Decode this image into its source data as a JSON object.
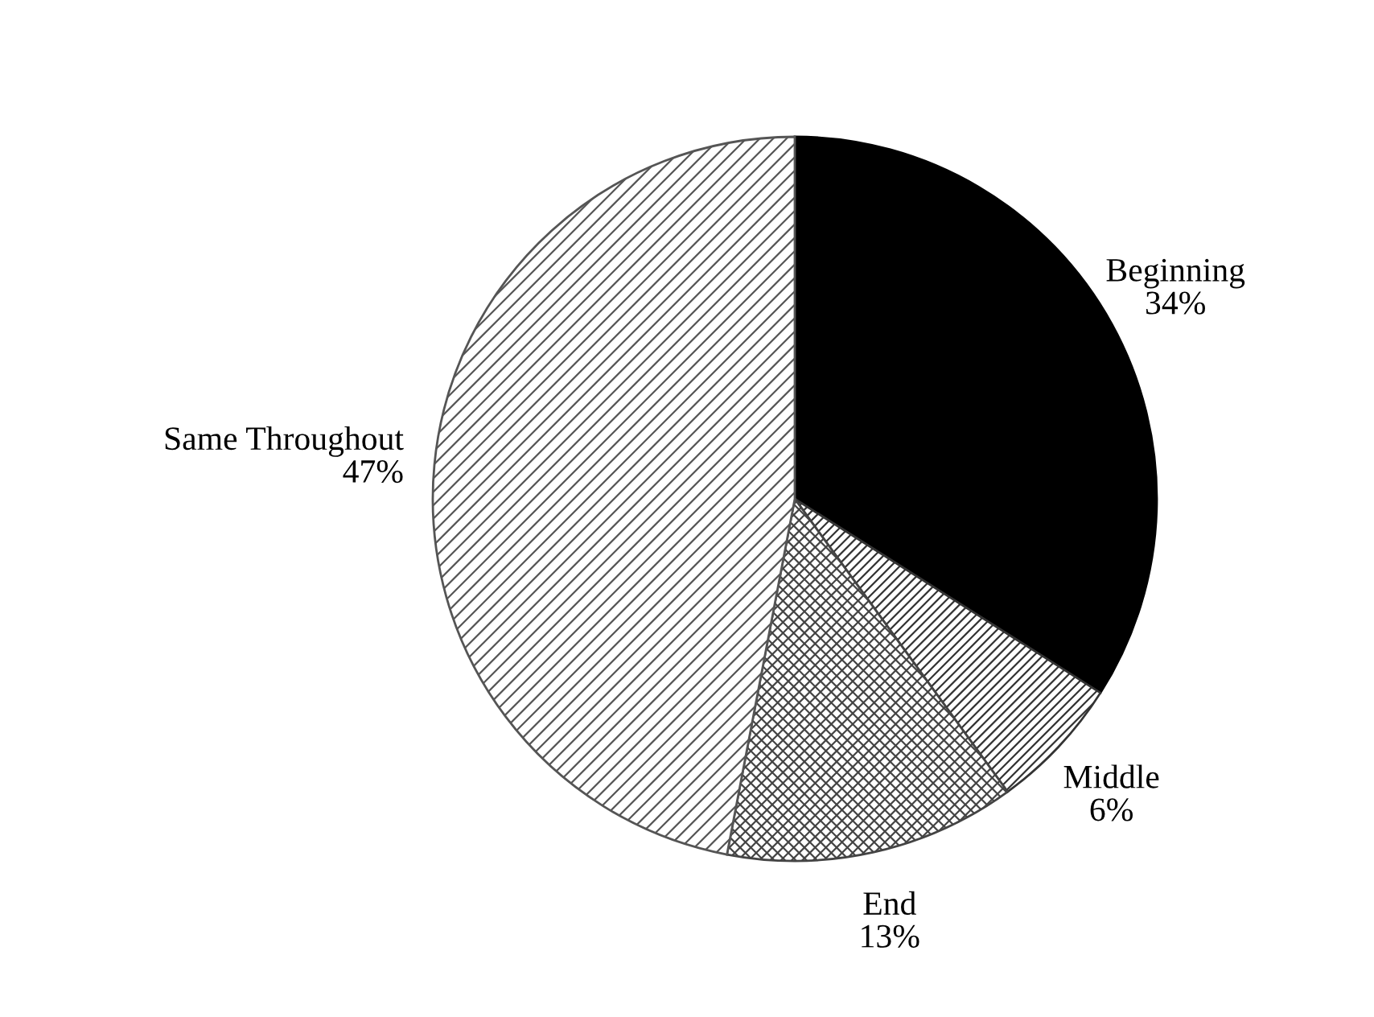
{
  "chart_data": {
    "type": "pie",
    "categories": [
      "Beginning",
      "Middle",
      "End",
      "Same Throughout"
    ],
    "values": [
      34,
      6,
      13,
      47
    ],
    "value_labels": [
      "34%",
      "6%",
      "13%",
      "47%"
    ],
    "colors": [
      "#000000",
      "#333333",
      "#444444",
      "#555555"
    ],
    "legend": false
  }
}
